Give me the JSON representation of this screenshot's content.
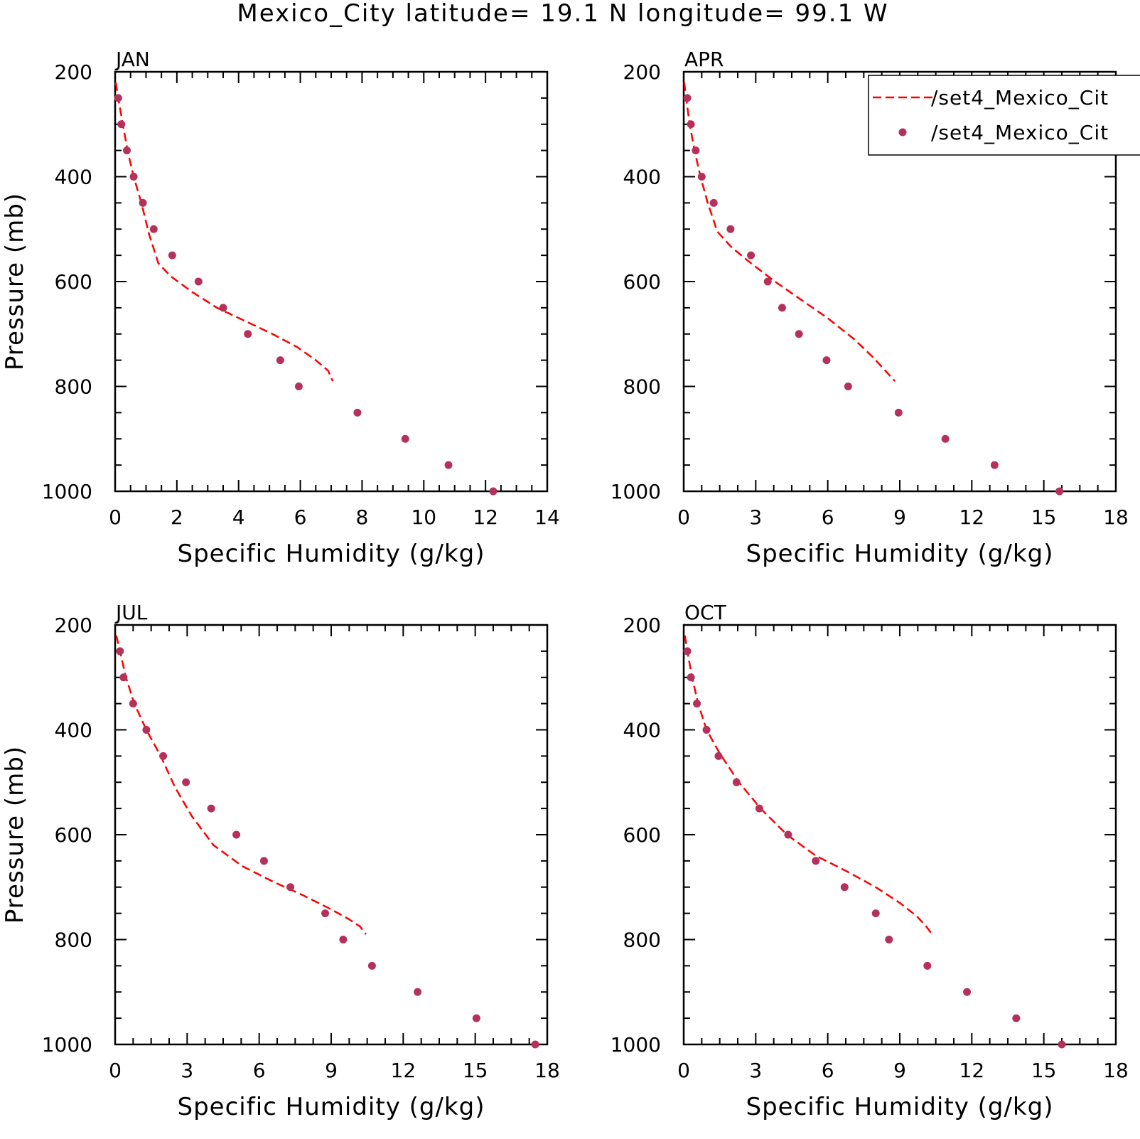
{
  "title": "Mexico_City  latitude= 19.1 N longitude= 99.1 W",
  "legend": {
    "placement": "top-right of APR panel (clipped)",
    "entries": [
      {
        "label": "/set4_Mexico_Cit",
        "style": "dashed-line",
        "color": "#ff0000"
      },
      {
        "label": "/set4_Mexico_Cit",
        "style": "dot",
        "color": "#b5305a"
      }
    ]
  },
  "colors": {
    "model_line": "#ff0000",
    "obs_dots": "#b5305a",
    "axes": "#000000"
  },
  "chart_data": [
    {
      "type": "line",
      "panel_label": "JAN",
      "xlabel": "Specific Humidity (g/kg)",
      "ylabel": "Pressure (mb)",
      "xlim": [
        0,
        14
      ],
      "ylim": [
        200,
        1000
      ],
      "y_inverted": true,
      "xticks": [
        0,
        2,
        4,
        6,
        8,
        10,
        12,
        14
      ],
      "yticks": [
        200,
        400,
        600,
        800,
        1000
      ],
      "series": [
        {
          "style": "dashed-line",
          "x": [
            0.02,
            0.1,
            0.25,
            0.4,
            0.6,
            0.85,
            1.1,
            1.4,
            1.8,
            2.5,
            3.3,
            4.2,
            5.1,
            5.9,
            6.5,
            6.9,
            7.05
          ],
          "y": [
            220,
            250,
            300,
            350,
            400,
            450,
            510,
            565,
            590,
            620,
            650,
            675,
            700,
            725,
            750,
            770,
            790
          ]
        },
        {
          "style": "dot",
          "x": [
            0.1,
            0.2,
            0.38,
            0.6,
            0.9,
            1.25,
            1.85,
            2.7,
            3.5,
            4.3,
            5.35,
            5.95,
            7.85,
            9.4,
            10.8,
            12.25
          ],
          "y": [
            250,
            300,
            350,
            400,
            450,
            500,
            550,
            600,
            650,
            700,
            750,
            800,
            850,
            900,
            950,
            1000
          ]
        }
      ]
    },
    {
      "type": "line",
      "panel_label": "APR",
      "xlabel": "Specific Humidity (g/kg)",
      "ylabel": "",
      "xlim": [
        0,
        18
      ],
      "ylim": [
        200,
        1000
      ],
      "y_inverted": true,
      "xticks": [
        0,
        3,
        6,
        9,
        12,
        15,
        18
      ],
      "yticks": [
        200,
        400,
        600,
        800,
        1000
      ],
      "series": [
        {
          "style": "dashed-line",
          "x": [
            0.02,
            0.1,
            0.25,
            0.45,
            0.7,
            1.0,
            1.4,
            2.0,
            2.8,
            3.8,
            4.9,
            6.0,
            7.1,
            7.9,
            8.4,
            8.8
          ],
          "y": [
            220,
            250,
            300,
            350,
            400,
            450,
            505,
            535,
            565,
            600,
            635,
            670,
            710,
            745,
            770,
            790
          ]
        },
        {
          "style": "dot",
          "x": [
            0.15,
            0.3,
            0.5,
            0.75,
            1.25,
            1.95,
            2.8,
            3.5,
            4.1,
            4.8,
            5.95,
            6.85,
            8.95,
            10.9,
            12.95,
            15.65
          ],
          "y": [
            250,
            300,
            350,
            400,
            450,
            500,
            550,
            600,
            650,
            700,
            750,
            800,
            850,
            900,
            950,
            1000
          ]
        }
      ]
    },
    {
      "type": "line",
      "panel_label": "JUL",
      "xlabel": "Specific Humidity (g/kg)",
      "ylabel": "Pressure (mb)",
      "xlim": [
        0,
        18
      ],
      "ylim": [
        200,
        1000
      ],
      "y_inverted": true,
      "xticks": [
        0,
        3,
        6,
        9,
        12,
        15,
        18
      ],
      "yticks": [
        200,
        400,
        600,
        800,
        1000
      ],
      "series": [
        {
          "style": "dashed-line",
          "x": [
            0.05,
            0.2,
            0.45,
            0.8,
            1.3,
            1.9,
            2.5,
            3.2,
            4.1,
            5.3,
            6.6,
            7.8,
            8.9,
            9.7,
            10.2,
            10.45
          ],
          "y": [
            220,
            250,
            300,
            350,
            400,
            450,
            510,
            565,
            620,
            660,
            690,
            715,
            740,
            760,
            775,
            790
          ]
        },
        {
          "style": "dot",
          "x": [
            0.2,
            0.35,
            0.75,
            1.3,
            2.0,
            2.95,
            4.0,
            5.05,
            6.2,
            7.3,
            8.75,
            9.5,
            10.7,
            12.6,
            15.05,
            17.5
          ],
          "y": [
            250,
            300,
            350,
            400,
            450,
            500,
            550,
            600,
            650,
            700,
            750,
            800,
            850,
            900,
            950,
            1000
          ]
        }
      ]
    },
    {
      "type": "line",
      "panel_label": "OCT",
      "xlabel": "Specific Humidity (g/kg)",
      "ylabel": "",
      "xlim": [
        0,
        18
      ],
      "ylim": [
        200,
        1000
      ],
      "y_inverted": true,
      "xticks": [
        0,
        3,
        6,
        9,
        12,
        15,
        18
      ],
      "yticks": [
        200,
        400,
        600,
        800,
        1000
      ],
      "series": [
        {
          "style": "dashed-line",
          "x": [
            0.05,
            0.15,
            0.35,
            0.6,
            0.95,
            1.5,
            2.3,
            3.2,
            4.3,
            5.5,
            6.8,
            8.0,
            9.0,
            9.7,
            10.1,
            10.35
          ],
          "y": [
            220,
            250,
            300,
            350,
            400,
            445,
            500,
            550,
            600,
            640,
            670,
            700,
            730,
            755,
            775,
            790
          ]
        },
        {
          "style": "dot",
          "x": [
            0.15,
            0.3,
            0.55,
            0.95,
            1.45,
            2.2,
            3.15,
            4.35,
            5.5,
            6.7,
            8.0,
            8.55,
            10.15,
            11.8,
            13.85,
            15.75
          ],
          "y": [
            250,
            300,
            350,
            400,
            450,
            500,
            550,
            600,
            650,
            700,
            750,
            800,
            850,
            900,
            950,
            1000
          ]
        }
      ]
    }
  ]
}
